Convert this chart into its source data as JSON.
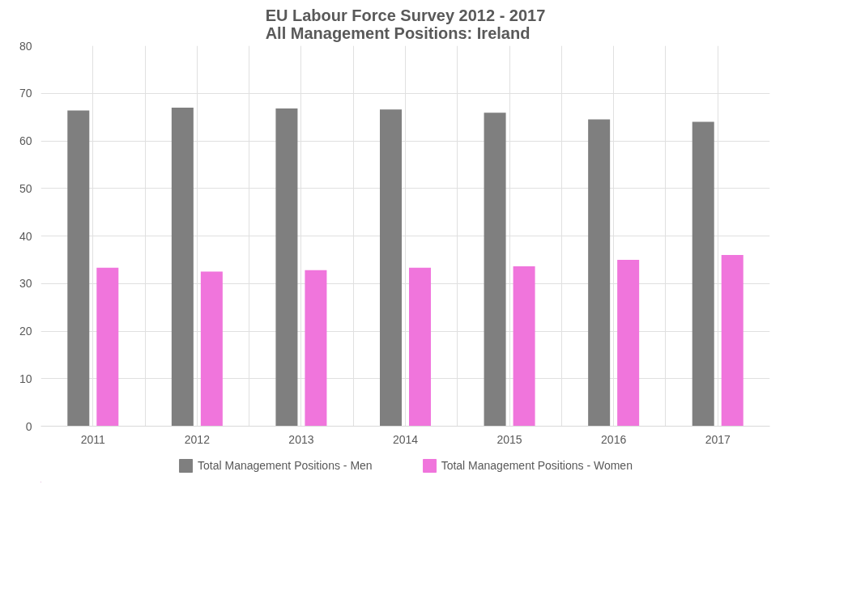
{
  "chart_data": {
    "type": "bar",
    "title": "EU Labour Force Survey 2012 - 2017\nAll Management Positions: Ireland",
    "categories": [
      "2011",
      "2012",
      "2013",
      "2014",
      "2015",
      "2016",
      "2017"
    ],
    "series": [
      {
        "name": "Total Management Positions - Men",
        "color": "#7f7f7f",
        "values": [
          66.4,
          67.0,
          66.8,
          66.6,
          65.9,
          64.5,
          64.0
        ]
      },
      {
        "name": "Total Management Positions - Women",
        "color": "#f075dc",
        "values": [
          33.3,
          32.5,
          32.8,
          33.3,
          33.6,
          35.0,
          36.0
        ]
      }
    ],
    "ylim": [
      0,
      80
    ],
    "yticks": [
      0,
      10,
      20,
      30,
      40,
      50,
      60,
      70,
      80
    ],
    "grid": true,
    "legend": "bottom"
  }
}
